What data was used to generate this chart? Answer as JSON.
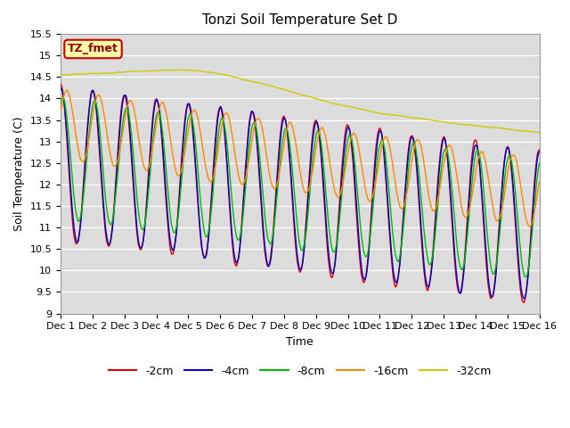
{
  "title": "Tonzi Soil Temperature Set D",
  "xlabel": "Time",
  "ylabel": "Soil Temperature (C)",
  "ylim": [
    9.0,
    15.5
  ],
  "yticks": [
    9.0,
    9.5,
    10.0,
    10.5,
    11.0,
    11.5,
    12.0,
    12.5,
    13.0,
    13.5,
    14.0,
    14.5,
    15.0,
    15.5
  ],
  "xtick_labels": [
    "Dec 1",
    "Dec 2",
    "Dec 3",
    "Dec 4",
    "Dec 5",
    "Dec 6",
    "Dec 7",
    "Dec 8",
    "Dec 9",
    "Dec 10",
    "Dec 11",
    "Dec 12",
    "Dec 13",
    "Dec 14",
    "Dec 15",
    "Dec 16"
  ],
  "legend_labels": [
    "-2cm",
    "-4cm",
    "-8cm",
    "-16cm",
    "-32cm"
  ],
  "line_colors": [
    "#DD0000",
    "#0000CC",
    "#00BB00",
    "#FF8800",
    "#CCCC00"
  ],
  "annotation_text": "TZ_fmet",
  "annotation_bg": "#FFFFAA",
  "annotation_edge": "#CC0000",
  "n_points": 720,
  "days": 15,
  "seed": 42
}
